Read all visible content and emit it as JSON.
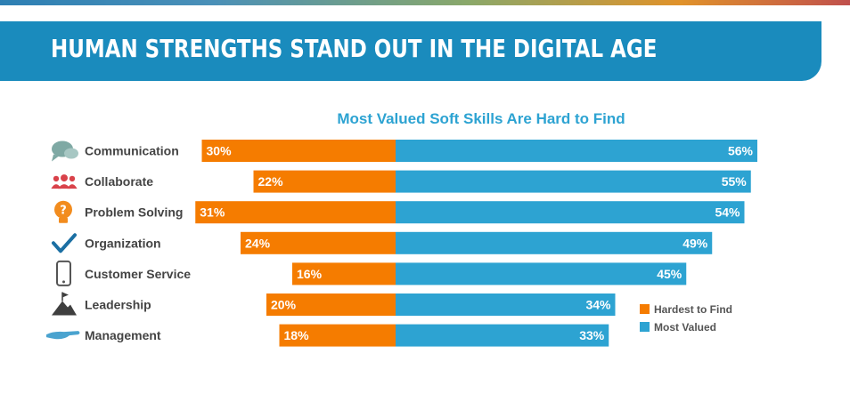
{
  "header": {
    "title": "HUMAN STRENGTHS STAND OUT IN THE DIGITAL AGE"
  },
  "chart_data": {
    "type": "bar",
    "orientation": "horizontal-diverging",
    "title": "Most Valued Soft Skills Are Hard to Find",
    "categories": [
      "Communication",
      "Collaborate",
      "Problem Solving",
      "Organization",
      "Customer Service",
      "Leadership",
      "Management"
    ],
    "icons": [
      "speech-bubbles-icon",
      "people-group-icon",
      "lightbulb-question-icon",
      "checkmark-icon",
      "smartphone-icon",
      "mountain-flag-icon",
      "hand-icon"
    ],
    "series": [
      {
        "name": "Hardest to Find",
        "color": "#f57c00",
        "values": [
          30,
          22,
          31,
          24,
          16,
          20,
          18
        ],
        "labels": [
          "30%",
          "22%",
          "31%",
          "24%",
          "16%",
          "20%",
          "18%"
        ]
      },
      {
        "name": "Most Valued",
        "color": "#2da3d2",
        "values": [
          56,
          55,
          54,
          49,
          45,
          34,
          33
        ],
        "labels": [
          "56%",
          "55%",
          "54%",
          "49%",
          "45%",
          "34%",
          "33%"
        ]
      }
    ],
    "value_unit": "%",
    "legend_position": "bottom-right",
    "grid": false,
    "axes_visible": false
  }
}
